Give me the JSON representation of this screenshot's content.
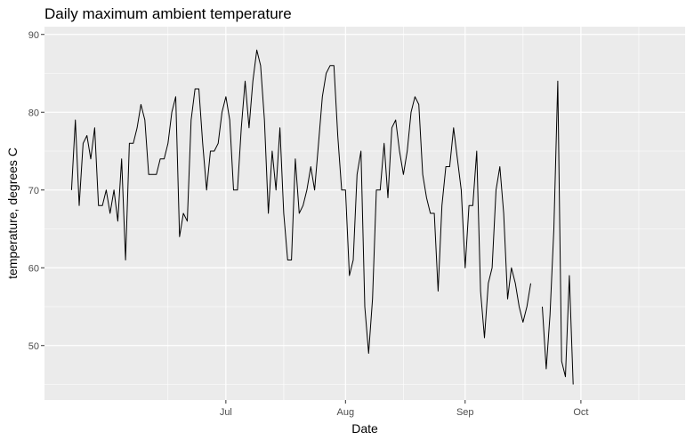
{
  "chart_data": {
    "type": "line",
    "title": "Daily maximum ambient temperature",
    "xlabel": "Date",
    "ylabel": "temperature, degrees C",
    "ylim": [
      43,
      91
    ],
    "yticks": [
      50,
      60,
      70,
      80,
      90
    ],
    "xlim": [
      "2013-05-15",
      "2013-10-28"
    ],
    "xticks": [
      {
        "date": "2013-07-01",
        "label": "Jul"
      },
      {
        "date": "2013-08-01",
        "label": "Aug"
      },
      {
        "date": "2013-09-01",
        "label": "Sep"
      },
      {
        "date": "2013-10-01",
        "label": "Oct"
      }
    ],
    "x_minor": [
      "2013-06-16",
      "2013-07-16",
      "2013-08-16",
      "2013-09-16",
      "2013-10-16"
    ],
    "grid": true,
    "series": [
      {
        "name": "temperature",
        "start_date": "2013-05-22",
        "values": [
          70,
          79,
          68,
          76,
          77,
          74,
          78,
          68,
          68,
          70,
          67,
          70,
          66,
          74,
          61,
          76,
          76,
          78,
          81,
          79,
          72,
          72,
          72,
          74,
          74,
          76,
          80,
          82,
          64,
          67,
          66,
          79,
          83,
          83,
          76,
          70,
          75,
          75,
          76,
          80,
          82,
          79,
          70,
          70,
          78,
          84,
          78,
          84,
          88,
          86,
          79,
          67,
          75,
          70,
          78,
          67,
          61,
          61,
          74,
          67,
          68,
          70,
          73,
          70,
          76,
          82,
          85,
          86,
          86,
          77,
          70,
          70,
          59,
          61,
          72,
          75,
          55,
          49,
          56,
          70,
          70,
          76,
          69,
          78,
          79,
          75,
          72,
          75,
          80,
          82,
          81,
          72,
          69,
          67,
          67,
          57,
          68,
          73,
          73,
          78,
          74,
          70,
          60,
          68,
          68,
          75,
          57,
          51,
          58,
          60,
          70,
          73,
          67,
          56,
          60,
          58,
          55,
          53,
          55,
          58,
          null,
          null,
          55,
          47,
          54,
          65,
          84,
          48,
          46,
          59,
          45
        ]
      }
    ]
  }
}
